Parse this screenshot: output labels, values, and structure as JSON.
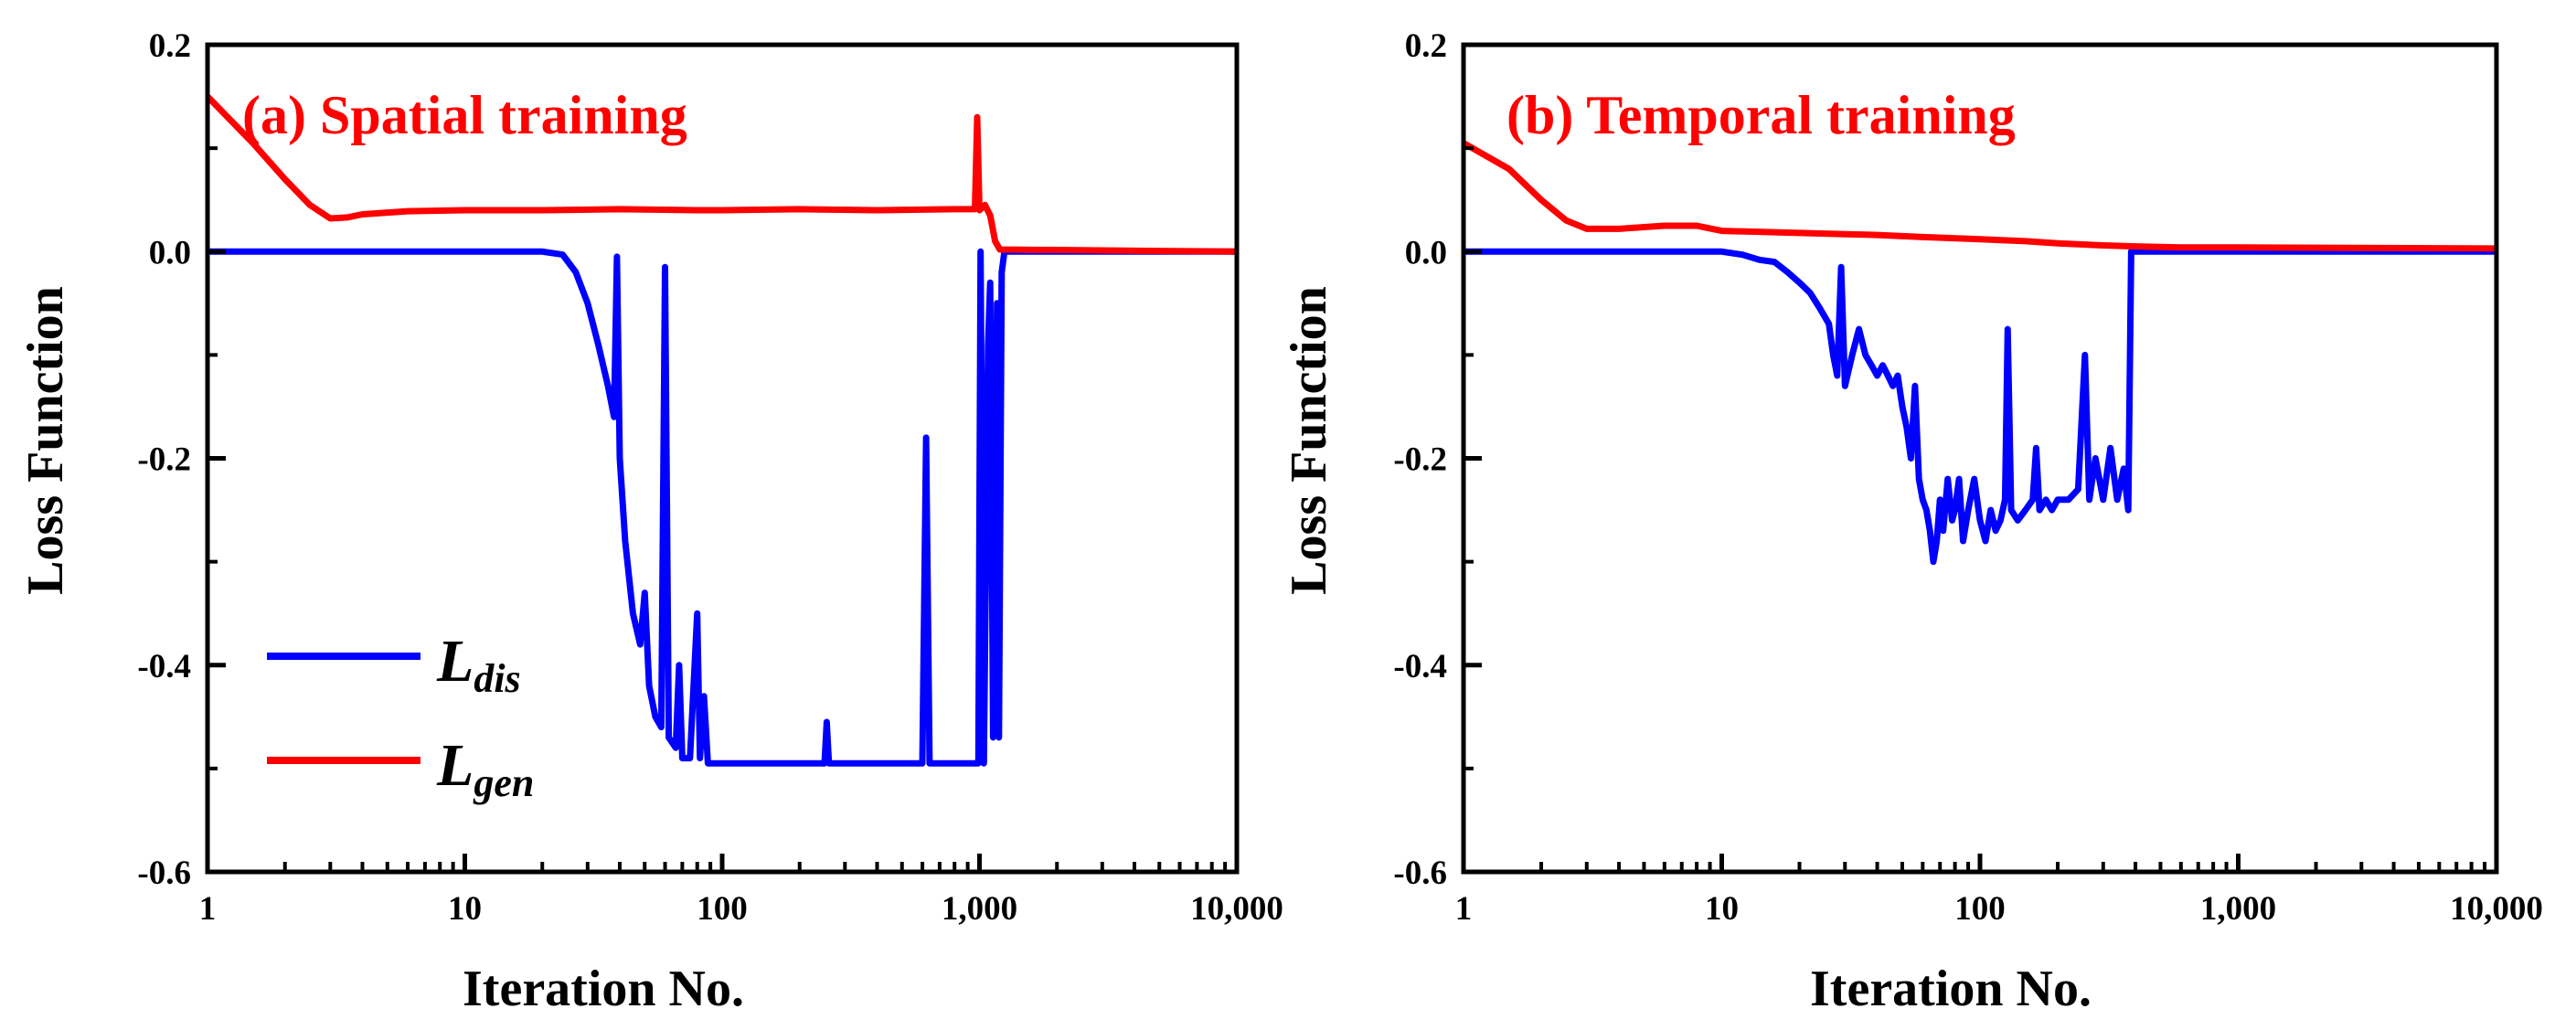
{
  "chart_data": [
    {
      "type": "line",
      "title": "(a) Spatial training",
      "xlabel": "Iteration No.",
      "ylabel": "Loss Function",
      "xscale": "log",
      "xlim": [
        1,
        10000
      ],
      "ylim": [
        -0.6,
        0.2
      ],
      "xticks": [
        1,
        10,
        100,
        1000,
        10000
      ],
      "xtick_labels": [
        "1",
        "10",
        "100",
        "1,000",
        "10,000"
      ],
      "yticks": [
        -0.6,
        -0.4,
        -0.2,
        0.0,
        0.2
      ],
      "ytick_labels": [
        "-0.6",
        "-0.4",
        "-0.2",
        "0.0",
        "0.2"
      ],
      "legend": {
        "position": "lower-left",
        "entries": [
          {
            "main": "L",
            "sub": "dis",
            "color": "#0000ff"
          },
          {
            "main": "L",
            "sub": "gen",
            "color": "#ff0000"
          }
        ]
      },
      "series": [
        {
          "name": "L_dis",
          "color": "#0000ff",
          "points": [
            [
              1,
              0.0
            ],
            [
              20,
              0.0
            ],
            [
              24,
              -0.003
            ],
            [
              27,
              -0.02
            ],
            [
              30,
              -0.05
            ],
            [
              33,
              -0.09
            ],
            [
              36,
              -0.13
            ],
            [
              38,
              -0.16
            ],
            [
              39,
              -0.005
            ],
            [
              40,
              -0.2
            ],
            [
              42,
              -0.28
            ],
            [
              45,
              -0.35
            ],
            [
              48,
              -0.38
            ],
            [
              50,
              -0.33
            ],
            [
              52,
              -0.42
            ],
            [
              55,
              -0.45
            ],
            [
              58,
              -0.46
            ],
            [
              60,
              -0.015
            ],
            [
              62,
              -0.47
            ],
            [
              66,
              -0.48
            ],
            [
              68,
              -0.4
            ],
            [
              70,
              -0.49
            ],
            [
              75,
              -0.49
            ],
            [
              80,
              -0.35
            ],
            [
              82,
              -0.49
            ],
            [
              85,
              -0.43
            ],
            [
              88,
              -0.495
            ],
            [
              95,
              -0.495
            ],
            [
              100,
              -0.495
            ],
            [
              250,
              -0.495
            ],
            [
              255,
              -0.455
            ],
            [
              260,
              -0.495
            ],
            [
              600,
              -0.495
            ],
            [
              620,
              -0.18
            ],
            [
              640,
              -0.495
            ],
            [
              990,
              -0.495
            ],
            [
              1010,
              0.0
            ],
            [
              1040,
              -0.495
            ],
            [
              1080,
              -0.09
            ],
            [
              1100,
              -0.03
            ],
            [
              1130,
              -0.47
            ],
            [
              1170,
              -0.05
            ],
            [
              1190,
              -0.47
            ],
            [
              1220,
              -0.02
            ],
            [
              1250,
              0.0
            ],
            [
              10000,
              0.0
            ]
          ]
        },
        {
          "name": "L_gen",
          "color": "#ff0000",
          "points": [
            [
              1,
              0.15
            ],
            [
              1.5,
              0.105
            ],
            [
              2,
              0.07
            ],
            [
              2.5,
              0.045
            ],
            [
              3,
              0.032
            ],
            [
              3.5,
              0.033
            ],
            [
              4,
              0.036
            ],
            [
              6,
              0.039
            ],
            [
              10,
              0.04
            ],
            [
              20,
              0.04
            ],
            [
              40,
              0.041
            ],
            [
              80,
              0.04
            ],
            [
              100,
              0.04
            ],
            [
              200,
              0.041
            ],
            [
              400,
              0.04
            ],
            [
              800,
              0.041
            ],
            [
              960,
              0.041
            ],
            [
              980,
              0.13
            ],
            [
              1000,
              0.04
            ],
            [
              1050,
              0.045
            ],
            [
              1100,
              0.035
            ],
            [
              1150,
              0.01
            ],
            [
              1200,
              0.002
            ],
            [
              10000,
              0.0
            ]
          ]
        }
      ]
    },
    {
      "type": "line",
      "title": "(b) Temporal training",
      "xlabel": "Iteration No.",
      "ylabel": "Loss Function",
      "xscale": "log",
      "xlim": [
        1,
        10000
      ],
      "ylim": [
        -0.6,
        0.2
      ],
      "xticks": [
        1,
        10,
        100,
        1000,
        10000
      ],
      "xtick_labels": [
        "1",
        "10",
        "100",
        "1,000",
        "10,000"
      ],
      "yticks": [
        -0.6,
        -0.4,
        -0.2,
        0.0,
        0.2
      ],
      "ytick_labels": [
        "-0.6",
        "-0.4",
        "-0.2",
        "0.0",
        "0.2"
      ],
      "series": [
        {
          "name": "L_dis",
          "color": "#0000ff",
          "points": [
            [
              1,
              0.0
            ],
            [
              10,
              0.0
            ],
            [
              12,
              -0.003
            ],
            [
              14,
              -0.008
            ],
            [
              16,
              -0.01
            ],
            [
              18,
              -0.02
            ],
            [
              20,
              -0.03
            ],
            [
              22,
              -0.04
            ],
            [
              24,
              -0.055
            ],
            [
              26,
              -0.07
            ],
            [
              27,
              -0.1
            ],
            [
              28,
              -0.12
            ],
            [
              29,
              -0.015
            ],
            [
              30,
              -0.13
            ],
            [
              32,
              -0.1
            ],
            [
              34,
              -0.075
            ],
            [
              36,
              -0.1
            ],
            [
              38,
              -0.11
            ],
            [
              40,
              -0.12
            ],
            [
              42,
              -0.11
            ],
            [
              44,
              -0.12
            ],
            [
              46,
              -0.13
            ],
            [
              48,
              -0.12
            ],
            [
              50,
              -0.15
            ],
            [
              52,
              -0.17
            ],
            [
              54,
              -0.2
            ],
            [
              56,
              -0.13
            ],
            [
              58,
              -0.22
            ],
            [
              60,
              -0.24
            ],
            [
              62,
              -0.25
            ],
            [
              64,
              -0.27
            ],
            [
              66,
              -0.3
            ],
            [
              68,
              -0.28
            ],
            [
              70,
              -0.24
            ],
            [
              72,
              -0.27
            ],
            [
              75,
              -0.22
            ],
            [
              78,
              -0.26
            ],
            [
              80,
              -0.25
            ],
            [
              83,
              -0.22
            ],
            [
              86,
              -0.28
            ],
            [
              90,
              -0.25
            ],
            [
              95,
              -0.22
            ],
            [
              100,
              -0.26
            ],
            [
              105,
              -0.28
            ],
            [
              110,
              -0.25
            ],
            [
              115,
              -0.27
            ],
            [
              120,
              -0.26
            ],
            [
              125,
              -0.24
            ],
            [
              128,
              -0.075
            ],
            [
              132,
              -0.25
            ],
            [
              140,
              -0.26
            ],
            [
              150,
              -0.25
            ],
            [
              160,
              -0.24
            ],
            [
              165,
              -0.19
            ],
            [
              170,
              -0.25
            ],
            [
              180,
              -0.24
            ],
            [
              190,
              -0.25
            ],
            [
              200,
              -0.24
            ],
            [
              220,
              -0.24
            ],
            [
              240,
              -0.23
            ],
            [
              255,
              -0.1
            ],
            [
              265,
              -0.24
            ],
            [
              280,
              -0.2
            ],
            [
              300,
              -0.24
            ],
            [
              320,
              -0.19
            ],
            [
              340,
              -0.24
            ],
            [
              360,
              -0.21
            ],
            [
              375,
              -0.25
            ],
            [
              385,
              0.0
            ],
            [
              10000,
              0.0
            ]
          ]
        },
        {
          "name": "L_gen",
          "color": "#ff0000",
          "points": [
            [
              1,
              0.105
            ],
            [
              1.5,
              0.08
            ],
            [
              2,
              0.05
            ],
            [
              2.5,
              0.03
            ],
            [
              3,
              0.022
            ],
            [
              4,
              0.022
            ],
            [
              6,
              0.025
            ],
            [
              8,
              0.025
            ],
            [
              10,
              0.02
            ],
            [
              20,
              0.018
            ],
            [
              40,
              0.016
            ],
            [
              60,
              0.014
            ],
            [
              100,
              0.012
            ],
            [
              150,
              0.01
            ],
            [
              200,
              0.008
            ],
            [
              300,
              0.006
            ],
            [
              400,
              0.005
            ],
            [
              600,
              0.004
            ],
            [
              1000,
              0.004
            ],
            [
              10000,
              0.003
            ]
          ]
        }
      ]
    }
  ]
}
